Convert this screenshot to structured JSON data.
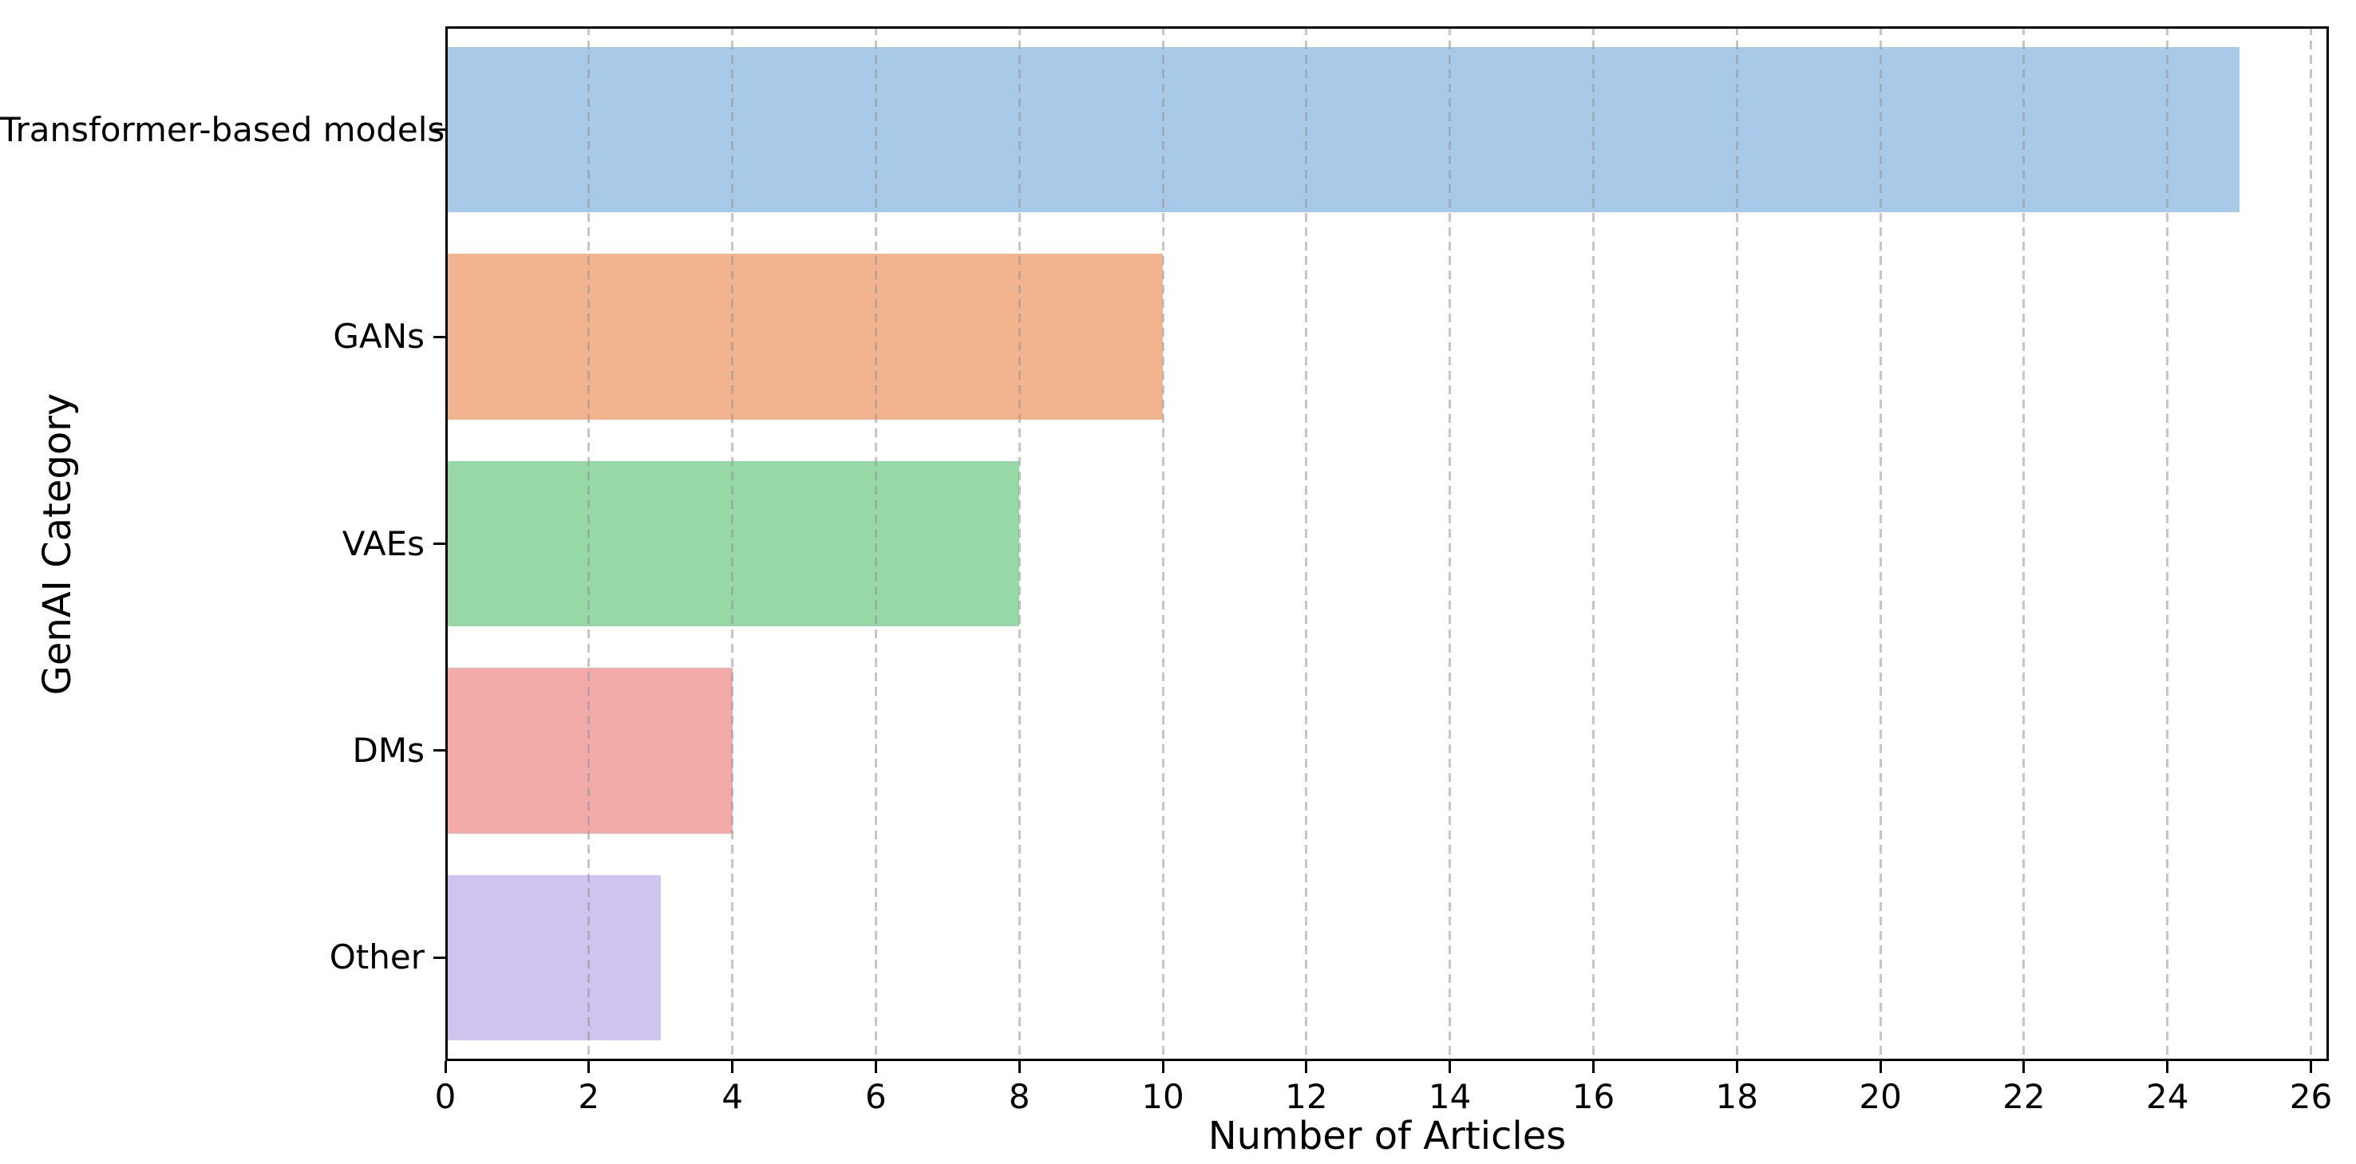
{
  "figure": {
    "background": "#ffffff",
    "plot_background": "#ffffff",
    "spine_color": "#000000",
    "text_color": "#000000"
  },
  "chart_data": {
    "type": "bar",
    "orientation": "horizontal",
    "title": "",
    "xlabel": "Number of Articles",
    "ylabel": "GenAI Category",
    "categories": [
      "Transformer-based models",
      "GANs",
      "VAEs",
      "DMs",
      "Other"
    ],
    "values": [
      25,
      10,
      8,
      4,
      3
    ],
    "bar_colors": [
      "#a9c9e9",
      "#f1b48e",
      "#96d8a6",
      "#f2aba8",
      "#cfc3ef"
    ],
    "bar_height_fraction": 0.8,
    "xlim": [
      0,
      26.25
    ],
    "xticks": [
      0,
      2,
      4,
      6,
      8,
      10,
      12,
      14,
      16,
      18,
      20,
      22,
      24,
      26
    ],
    "grid": {
      "axis": "x",
      "style": "dashed",
      "color": "#c2c2c2"
    },
    "legend": "none"
  }
}
